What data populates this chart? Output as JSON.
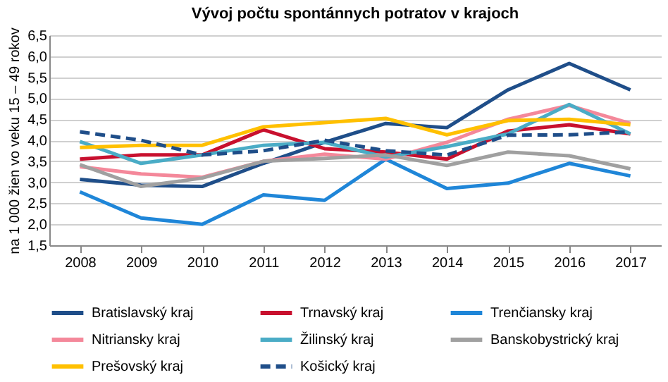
{
  "chart_data": {
    "type": "line",
    "title": "Vývoj počtu spontánnych potratov v krajoch",
    "ylabel": "na 1 000 žien vo veku 15 – 49 rokov",
    "categories": [
      "2008",
      "2009",
      "2010",
      "2011",
      "2012",
      "2013",
      "2014",
      "2015",
      "2016",
      "2017"
    ],
    "series": [
      {
        "name": "Bratislavský kraj",
        "color": "#1f4e89",
        "values": [
          3.07,
          2.93,
          2.9,
          3.45,
          3.95,
          4.4,
          4.3,
          5.2,
          5.83,
          5.2
        ]
      },
      {
        "name": "Trnavský kraj",
        "color": "#c8102e",
        "values": [
          3.55,
          3.65,
          3.65,
          4.25,
          3.8,
          3.72,
          3.55,
          4.22,
          4.37,
          4.15
        ]
      },
      {
        "name": "Trenčiansky kraj",
        "color": "#1f86d8",
        "values": [
          2.77,
          2.15,
          2.0,
          2.7,
          2.57,
          3.55,
          2.85,
          2.98,
          3.45,
          3.15
        ]
      },
      {
        "name": "Nitriansky kraj",
        "color": "#f4889a",
        "values": [
          3.37,
          3.2,
          3.12,
          3.5,
          3.67,
          3.55,
          3.95,
          4.5,
          4.83,
          4.4
        ]
      },
      {
        "name": "Žilinský kraj",
        "color": "#4aacc6",
        "values": [
          3.97,
          3.45,
          3.65,
          3.88,
          3.95,
          3.6,
          3.85,
          4.15,
          4.85,
          4.15
        ]
      },
      {
        "name": "Banskobystrický kraj",
        "color": "#a0a0a0",
        "values": [
          3.42,
          2.9,
          3.1,
          3.5,
          3.57,
          3.65,
          3.4,
          3.72,
          3.63,
          3.32
        ]
      },
      {
        "name": "Prešovský kraj",
        "color": "#ffc000",
        "values": [
          3.83,
          3.88,
          3.88,
          4.32,
          4.42,
          4.52,
          4.13,
          4.47,
          4.5,
          4.37
        ]
      },
      {
        "name": "Košický kraj",
        "color": "#1f4e89",
        "line_style": "dashed",
        "values": [
          4.2,
          4.0,
          3.65,
          3.75,
          4.0,
          3.75,
          3.65,
          4.12,
          4.13,
          4.2
        ]
      }
    ],
    "ylim": [
      1.5,
      6.5
    ],
    "yticks": [
      {
        "value": 1.5,
        "label": "1,5"
      },
      {
        "value": 2.0,
        "label": "2,0"
      },
      {
        "value": 2.5,
        "label": "2,5"
      },
      {
        "value": 3.0,
        "label": "3,0"
      },
      {
        "value": 3.5,
        "label": "3,5"
      },
      {
        "value": 4.0,
        "label": "4,0"
      },
      {
        "value": 4.5,
        "label": "4,5"
      },
      {
        "value": 5.0,
        "label": "5,0"
      },
      {
        "value": 5.5,
        "label": "5,5"
      },
      {
        "value": 6.0,
        "label": "6,0"
      },
      {
        "value": 6.5,
        "label": "6,5"
      }
    ],
    "grid": "y",
    "legend": "bottom",
    "line_style": "solid",
    "marker": "none"
  }
}
